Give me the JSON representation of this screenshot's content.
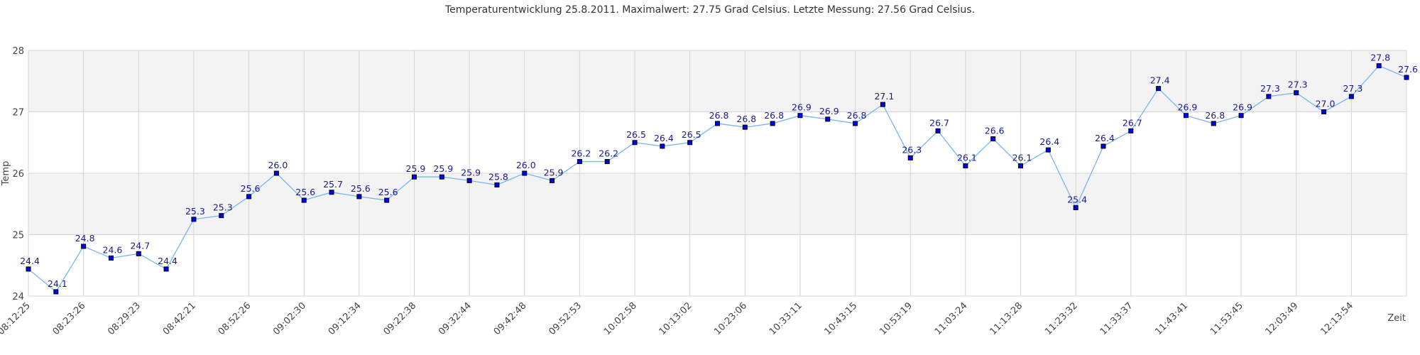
{
  "chart_data": {
    "type": "line",
    "title": "Temperaturentwicklung 25.8.2011. Maximalwert: 27.75 Grad Celsius. Letzte Messung: 27.56 Grad Celsius.",
    "xlabel": "Zeit",
    "ylabel": "Temp",
    "ylim": [
      24,
      28
    ],
    "yticks": [
      "24",
      "25",
      "26",
      "27",
      "28"
    ],
    "grid": true,
    "legend": "none",
    "xtick_every": 2,
    "xtick_labels": [
      "08:12:25",
      "08:23:26",
      "08:29:23",
      "08:42:21",
      "08:52:26",
      "09:02:30",
      "09:12:34",
      "09:22:38",
      "09:32:44",
      "09:42:48",
      "09:52:53",
      "10:02:58",
      "10:13:02",
      "10:23:06",
      "10:33:11",
      "10:43:15",
      "10:53:19",
      "11:03:24",
      "11:13:28",
      "11:23:32",
      "11:33:37",
      "11:43:41",
      "11:53:45",
      "12:03:49",
      "12:13:54"
    ],
    "series": [
      {
        "name": "Temp",
        "color": "#7ab4f0",
        "marker_color": "#0000ff",
        "values": [
          24.44,
          24.07,
          24.81,
          24.62,
          24.69,
          24.44,
          25.25,
          25.31,
          25.62,
          26.0,
          25.56,
          25.69,
          25.62,
          25.56,
          25.94,
          25.94,
          25.88,
          25.81,
          26.0,
          25.88,
          26.19,
          26.19,
          26.5,
          26.44,
          26.5,
          26.81,
          26.75,
          26.81,
          26.94,
          26.88,
          26.81,
          27.12,
          26.25,
          26.69,
          26.12,
          26.56,
          26.12,
          26.38,
          25.44,
          26.44,
          26.69,
          27.38,
          26.94,
          26.81,
          26.94,
          27.25,
          27.31,
          27.0,
          27.25,
          27.75,
          27.56
        ]
      }
    ]
  },
  "colors": {
    "band": "#f3f3f3",
    "grid": "#d4d4d4",
    "label": "#1a1a8c"
  }
}
